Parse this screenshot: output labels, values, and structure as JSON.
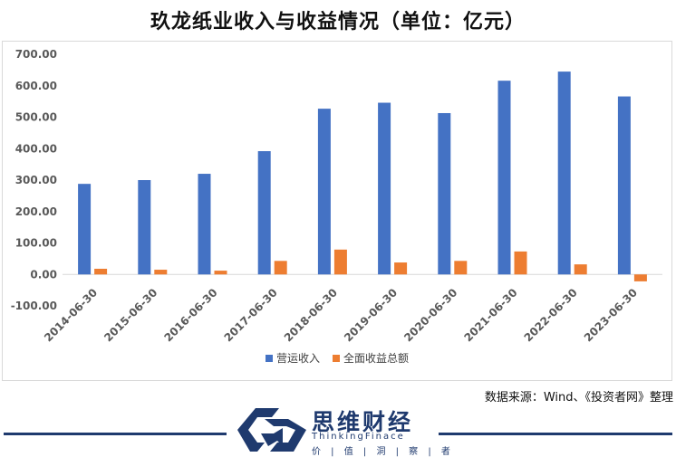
{
  "chart_data": {
    "type": "bar",
    "title": "玖龙纸业收入与收益情况（单位：亿元）",
    "categories": [
      "2014-06-30",
      "2015-06-30",
      "2016-06-30",
      "2017-06-30",
      "2018-06-30",
      "2019-06-30",
      "2020-06-30",
      "2021-06-30",
      "2022-06-30",
      "2023-06-30"
    ],
    "series": [
      {
        "name": "营运收入",
        "color": "#4472c4",
        "values": [
          288,
          300,
          320,
          392,
          527,
          546,
          513,
          616,
          645,
          566
        ]
      },
      {
        "name": "全面收益总额",
        "color": "#ed7d31",
        "values": [
          18,
          15,
          12,
          43,
          79,
          38,
          43,
          73,
          32,
          -22
        ]
      }
    ],
    "ylim": [
      -100,
      700
    ],
    "yticks": [
      "700.00",
      "600.00",
      "500.00",
      "400.00",
      "300.00",
      "200.00",
      "100.00",
      "0.00",
      "-100.00"
    ],
    "legend_position": "bottom",
    "grid": false
  },
  "source_note": "数据来源：Wind、《投资者网》整理",
  "brand": {
    "name": "思维财经",
    "english": "ThinkingFinace",
    "tagline": "价 | 值 | 洞 | 察 | 者"
  }
}
